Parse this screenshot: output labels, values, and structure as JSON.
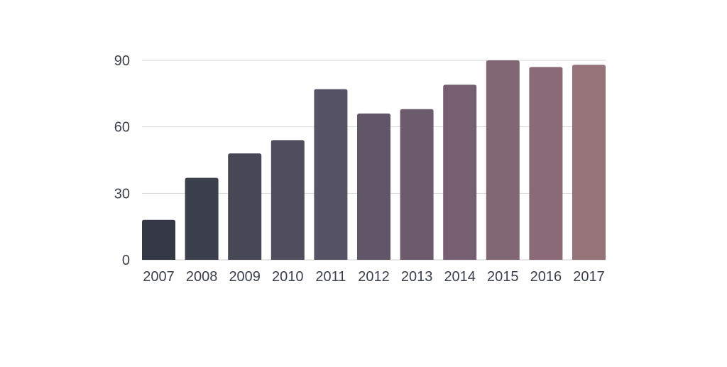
{
  "chart_data": {
    "type": "bar",
    "title": "",
    "xlabel": "",
    "ylabel": "",
    "categories": [
      "2007",
      "2008",
      "2009",
      "2010",
      "2011",
      "2012",
      "2013",
      "2014",
      "2015",
      "2016",
      "2017"
    ],
    "values": [
      18,
      37,
      48,
      54,
      77,
      66,
      68,
      79,
      90,
      87,
      88
    ],
    "ylim": [
      0,
      90
    ],
    "yticks": [
      0,
      30,
      60,
      90
    ],
    "grid": true,
    "legend": "none",
    "bar_colors": [
      "#343844",
      "#3c3f4c",
      "#464856",
      "#4f4d5e",
      "#575366",
      "#615668",
      "#6b5b6c",
      "#765f70",
      "#816673",
      "#8b6a77",
      "#957479"
    ]
  }
}
